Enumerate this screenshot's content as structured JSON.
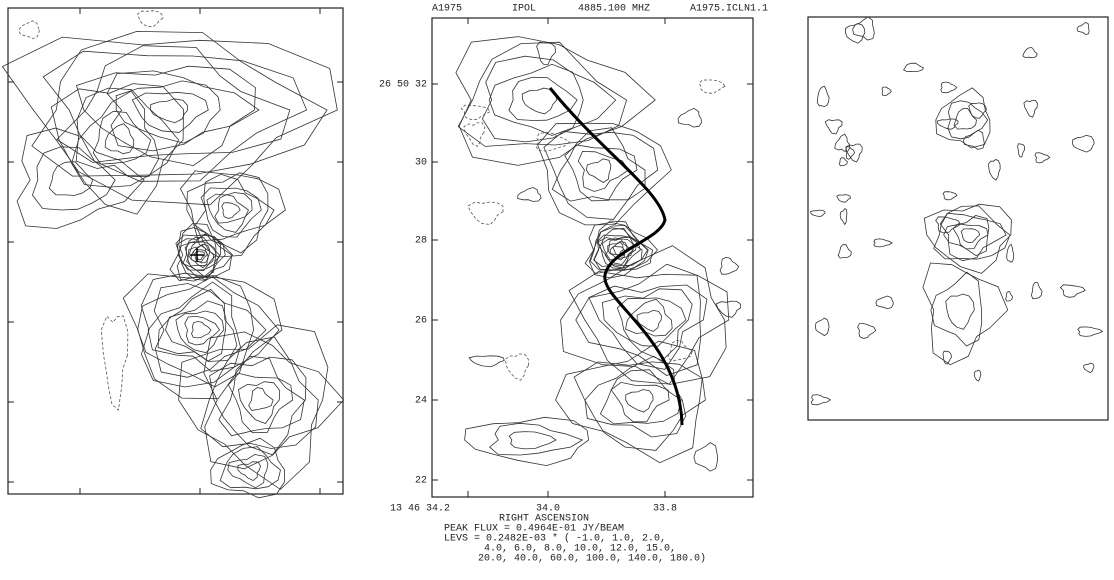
{
  "header": {
    "source": "A1975",
    "polarization": "IPOL",
    "frequency": "4885.100 MHZ",
    "map_name": "A1975.ICLN1.1"
  },
  "y_axis": {
    "tick_labels": [
      "26 50 32",
      "30",
      "28",
      "26",
      "24",
      "22"
    ]
  },
  "x_axis": {
    "tick_labels": [
      "13 46 34.2",
      "34.0",
      "33.8"
    ],
    "label": "RIGHT ASCENSION"
  },
  "caption": [
    "PEAK FLUX =  0.4964E-01 JY/BEAM",
    "LEVS =  0.2482E-03 * (   -1.0,     1.0,     2.0,",
    "4.0,     6.0,     8.0,    10.0,    12.0,    15.0,",
    "20.0,    40.0,    60.0,   100.0,   140.0,   180.0)"
  ]
}
